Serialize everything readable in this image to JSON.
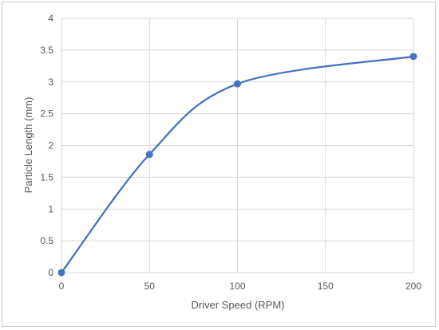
{
  "chart_data": {
    "type": "line",
    "title": "",
    "xlabel": "Driver Speed (RPM)",
    "ylabel": "Particle Length (mm)",
    "xlim": [
      0,
      200
    ],
    "ylim": [
      0,
      4
    ],
    "x_ticks": [
      0,
      50,
      100,
      150,
      200
    ],
    "y_ticks": [
      0,
      0.5,
      1,
      1.5,
      2,
      2.5,
      3,
      3.5,
      4
    ],
    "grid": true,
    "smooth": true,
    "markers": true,
    "series": [
      {
        "x": [
          0,
          50,
          100,
          200
        ],
        "y": [
          0,
          1.86,
          2.97,
          3.4
        ]
      }
    ],
    "colors": {
      "series": "#4472c4",
      "grid": "#d9d9d9",
      "text": "#595959",
      "frame": "#c9c9c9"
    }
  }
}
